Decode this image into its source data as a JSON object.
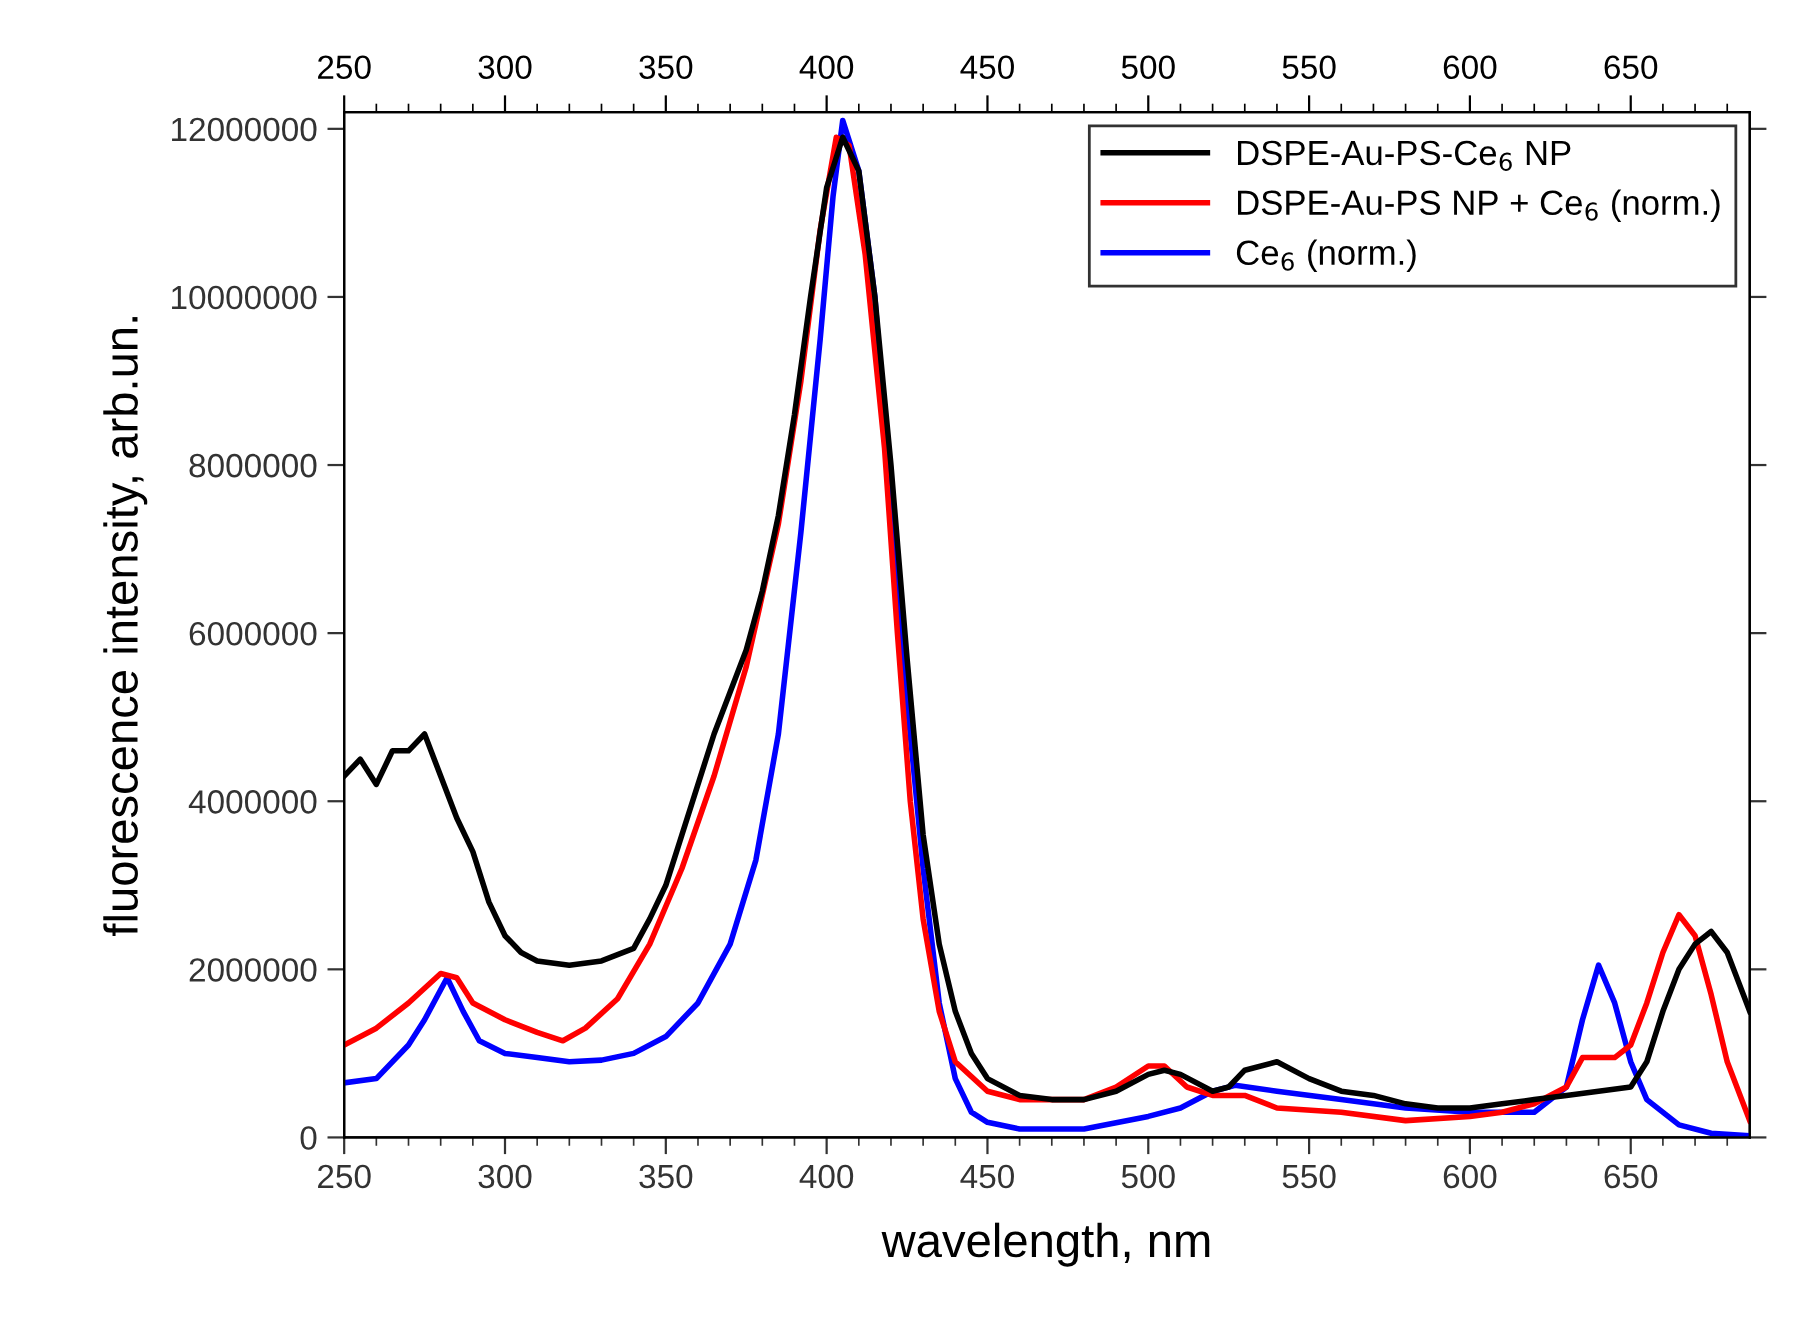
{
  "chart_data": {
    "type": "line",
    "xlabel": "wavelength, nm",
    "ylabel": "fluorescence intensity, arb.un.",
    "xlim": [
      250,
      687
    ],
    "xticks": [
      250,
      300,
      350,
      400,
      450,
      500,
      550,
      600,
      650
    ],
    "x2lim": [
      250,
      687
    ],
    "x2ticks": [
      250,
      300,
      350,
      400,
      450,
      500,
      550,
      600,
      650
    ],
    "ylim": [
      0,
      12200000
    ],
    "yticks": [
      0,
      2000000,
      4000000,
      6000000,
      8000000,
      10000000,
      12000000
    ],
    "legend": "top right",
    "grid": false,
    "marker": "none",
    "line_style": "solid",
    "series": [
      {
        "name": "DSPE-Au-PS-Ce$_{6}$ NP",
        "color": "#000000",
        "x": [
          250,
          255,
          260,
          265,
          270,
          275,
          280,
          285,
          290,
          295,
          300,
          305,
          310,
          320,
          330,
          340,
          345,
          350,
          355,
          360,
          365,
          370,
          375,
          380,
          385,
          390,
          395,
          400,
          405,
          410,
          415,
          420,
          425,
          430,
          435,
          440,
          445,
          450,
          460,
          470,
          480,
          490,
          500,
          505,
          510,
          520,
          525,
          530,
          540,
          550,
          560,
          570,
          580,
          590,
          600,
          610,
          620,
          630,
          640,
          650,
          655,
          660,
          665,
          670,
          675,
          680,
          685,
          687
        ],
        "values": [
          4300000,
          4500000,
          4200000,
          4600000,
          4600000,
          4800000,
          4300000,
          3800000,
          3400000,
          2800000,
          2400000,
          2200000,
          2100000,
          2050000,
          2100000,
          2250000,
          2600000,
          3000000,
          3600000,
          4200000,
          4800000,
          5300000,
          5800000,
          6500000,
          7400000,
          8600000,
          10000000,
          11300000,
          11900000,
          11500000,
          10000000,
          8000000,
          5700000,
          3600000,
          2300000,
          1500000,
          1000000,
          700000,
          500000,
          450000,
          450000,
          550000,
          750000,
          800000,
          750000,
          550000,
          600000,
          800000,
          900000,
          700000,
          550000,
          500000,
          400000,
          350000,
          350000,
          400000,
          450000,
          500000,
          550000,
          600000,
          900000,
          1500000,
          2000000,
          2300000,
          2450000,
          2200000,
          1700000,
          1500000
        ]
      },
      {
        "name": "DSPE-Au-PS NP + Ce$_{6}$ (norm.)",
        "color": "#ff0000",
        "x": [
          250,
          260,
          270,
          280,
          285,
          290,
          300,
          310,
          318,
          325,
          335,
          345,
          355,
          365,
          375,
          385,
          392,
          398,
          403,
          407,
          412,
          418,
          422,
          426,
          430,
          435,
          440,
          450,
          460,
          480,
          490,
          500,
          505,
          512,
          520,
          530,
          540,
          560,
          580,
          600,
          610,
          620,
          630,
          635,
          645,
          650,
          655,
          660,
          665,
          670,
          675,
          680,
          687
        ],
        "values": [
          1100000,
          1300000,
          1600000,
          1950000,
          1900000,
          1600000,
          1400000,
          1250000,
          1150000,
          1300000,
          1650000,
          2300000,
          3200000,
          4300000,
          5600000,
          7300000,
          9000000,
          10800000,
          11900000,
          11800000,
          10500000,
          8200000,
          6000000,
          4000000,
          2600000,
          1500000,
          900000,
          550000,
          450000,
          450000,
          600000,
          850000,
          850000,
          600000,
          500000,
          500000,
          350000,
          300000,
          200000,
          250000,
          300000,
          400000,
          600000,
          950000,
          950000,
          1100000,
          1600000,
          2200000,
          2650000,
          2400000,
          1700000,
          900000,
          200000
        ]
      },
      {
        "name": "Ce$_{6}$ (norm.)",
        "color": "#0000ff",
        "x": [
          250,
          260,
          270,
          275,
          282,
          287,
          292,
          300,
          310,
          320,
          330,
          340,
          350,
          360,
          370,
          378,
          385,
          392,
          398,
          402,
          405,
          410,
          415,
          420,
          425,
          430,
          435,
          440,
          445,
          450,
          460,
          480,
          500,
          510,
          520,
          527,
          540,
          560,
          580,
          600,
          620,
          630,
          635,
          640,
          645,
          650,
          655,
          665,
          675,
          687
        ],
        "values": [
          650000,
          700000,
          1100000,
          1400000,
          1900000,
          1500000,
          1150000,
          1000000,
          950000,
          900000,
          920000,
          1000000,
          1200000,
          1600000,
          2300000,
          3300000,
          4800000,
          7200000,
          9500000,
          11200000,
          12100000,
          11500000,
          10000000,
          7500000,
          5200000,
          3200000,
          1600000,
          700000,
          300000,
          180000,
          100000,
          100000,
          250000,
          350000,
          550000,
          620000,
          550000,
          450000,
          350000,
          300000,
          300000,
          600000,
          1400000,
          2050000,
          1600000,
          900000,
          450000,
          150000,
          50000,
          20000
        ]
      }
    ]
  }
}
